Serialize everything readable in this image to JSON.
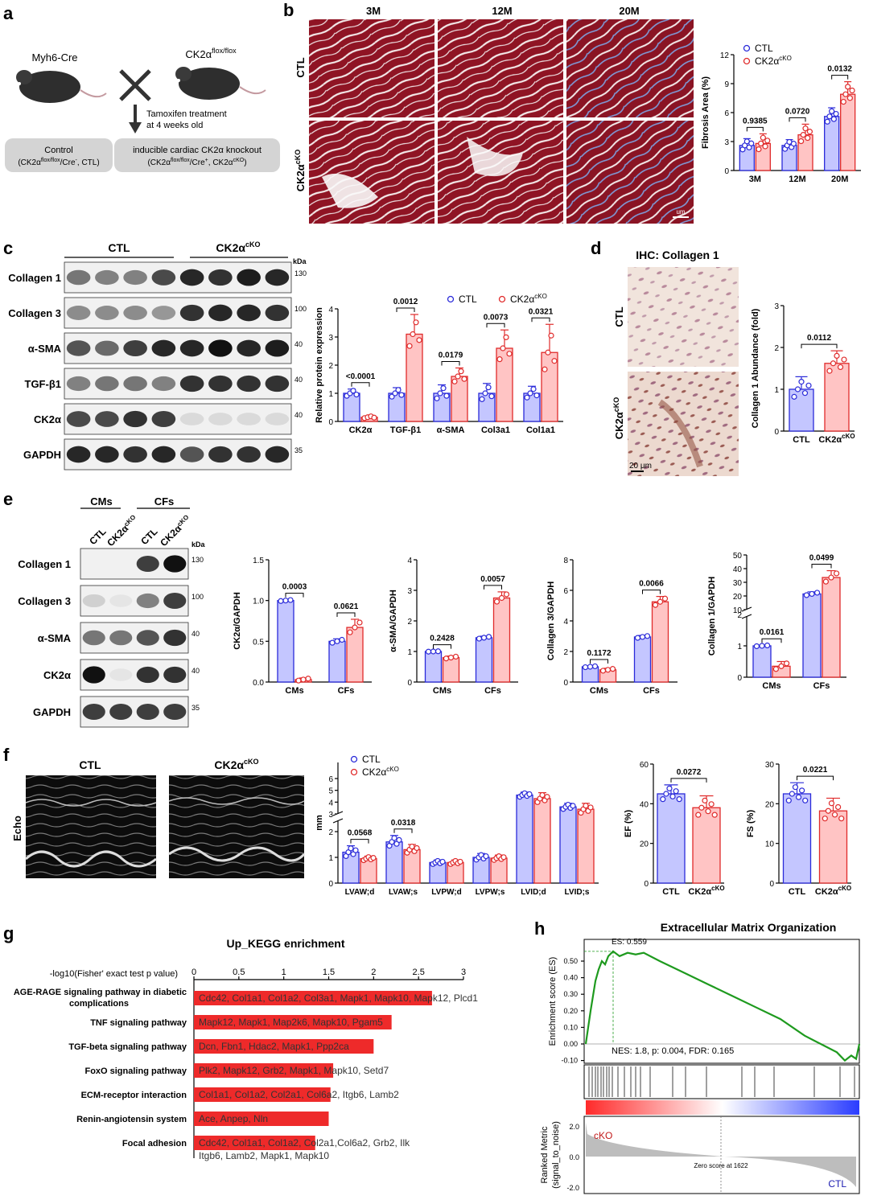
{
  "panels": {
    "a": {
      "letter": "a",
      "mouse_left": "Myh6-Cre",
      "mouse_right_base": "CK2α",
      "mouse_right_sup": "flox/flox",
      "treatment_line1": "Tamoxifen treatment",
      "treatment_line2": "at 4 weeks old",
      "box_left_line1": "Control",
      "box_left_line2": "(CK2α",
      "box_left_sup": "flox/flox",
      "box_left_line2b": "/Cre",
      "box_left_sup2": "-",
      "box_left_line2c": ", CTL)",
      "box_right_line1": "inducible cardiac CK2α knockout",
      "box_right_line2": "(CK2α",
      "box_right_sup": "flox/flox",
      "box_right_line2b": "/Cre",
      "box_right_sup2": "+",
      "box_right_line2c": ", CK2α",
      "box_right_sup3": "cKO",
      "box_right_line2d": ")"
    },
    "b": {
      "letter": "b",
      "col_labels": [
        "3M",
        "12M",
        "20M"
      ],
      "row_ctl": "CTL",
      "row_cko_base": "CK2α",
      "row_cko_sup": "cKO",
      "scale": "um"
    },
    "c": {
      "letter": "c",
      "group_ctl": "CTL",
      "group_cko_base": "CK2α",
      "group_cko_sup": "cKO",
      "kda": "kDa",
      "rows": [
        {
          "label": "Collagen 1",
          "kda": "130"
        },
        {
          "label": "Collagen 3",
          "kda": "100"
        },
        {
          "label": "α-SMA",
          "kda": "40"
        },
        {
          "label": "TGF-β1",
          "kda": "40"
        },
        {
          "label": "CK2α",
          "kda": "40"
        },
        {
          "label": "GAPDH",
          "kda": "35"
        }
      ]
    },
    "d": {
      "letter": "d",
      "title": "IHC: Collagen 1",
      "row_ctl": "CTL",
      "row_cko_base": "CK2α",
      "row_cko_sup": "cKO",
      "scalebar": "20 μm"
    },
    "e": {
      "letter": "e",
      "group_cms": "CMs",
      "group_cfs": "CFs",
      "lane_ctl": "CTL",
      "lane_cko_base": "CK2α",
      "lane_cko_sup": "cKO",
      "kda": "kDa",
      "rows": [
        {
          "label": "Collagen 1",
          "kda": "130"
        },
        {
          "label": "Collagen 3",
          "kda": "100"
        },
        {
          "label": "α-SMA",
          "kda": "40"
        },
        {
          "label": "CK2α",
          "kda": "40"
        },
        {
          "label": "GAPDH",
          "kda": "35"
        }
      ]
    },
    "f": {
      "letter": "f",
      "ctl": "CTL",
      "cko_base": "CK2α",
      "cko_sup": "cKO",
      "echo": "Echo"
    },
    "g": {
      "letter": "g",
      "title": "Up_KEGG enrichment",
      "axis_label": "-log10(Fisher' exact test p value)",
      "ticks": [
        "0",
        "0.5",
        "1",
        "1.5",
        "2",
        "2.5",
        "3"
      ],
      "bars": [
        {
          "name1": "AGE-RAGE signaling pathway in diabetic",
          "name2": "complications",
          "value": 2.65,
          "genes": "Cdc42, Col1a1, Col1a2, Col3a1, Mapk1, Mapk10, Mapk12, Plcd1",
          "genes2": ""
        },
        {
          "name1": "TNF signaling pathway",
          "name2": "",
          "value": 2.2,
          "genes": "Mapk12, Mapk1, Map2k6, Mapk10, Pgam5",
          "genes2": ""
        },
        {
          "name1": "TGF-beta signaling pathway",
          "name2": "",
          "value": 2.0,
          "genes": "Dcn, Fbn1, Hdac2, Mapk1, Ppp2ca",
          "genes2": ""
        },
        {
          "name1": "FoxO signaling pathway",
          "name2": "",
          "value": 1.55,
          "genes": "Plk2, Mapk12, Grb2, Mapk1, Mapk10, Setd7",
          "genes2": ""
        },
        {
          "name1": "ECM-receptor interaction",
          "name2": "",
          "value": 1.52,
          "genes": "Col1a1, Col1a2, Col2a1, Col6a2, Itgb6, Lamb2",
          "genes2": ""
        },
        {
          "name1": "Renin-angiotensin system",
          "name2": "",
          "value": 1.5,
          "genes": "Ace, Anpep, Nln",
          "genes2": ""
        },
        {
          "name1": "Focal adhesion",
          "name2": "",
          "value": 1.35,
          "genes": "Cdc42, Col1a1, Col1a2, Col2a1,Col6a2, Grb2, Ilk",
          "genes2": "Itgb6, Lamb2, Mapk1, Mapk10"
        }
      ]
    },
    "h": {
      "letter": "h",
      "title": "Extracellular Matrix Organization",
      "es_label": "ES: 0.559",
      "stats": "NES: 1.8, p: 0.004, FDR: 0.165",
      "ylabel_top": "Enrichment score (ES)",
      "yticks_top": [
        "0.50",
        "0.40",
        "0.30",
        "0.20",
        "0.10",
        "0.00",
        "-0.10"
      ],
      "ylabel_bottom1": "Ranked Metric",
      "ylabel_bottom2": "(signal_to_noise)",
      "yticks_bottom": [
        "2.0",
        "0.0",
        "-2.0"
      ],
      "cko": "cKO",
      "ctl": "CTL",
      "zero_score": "Zero score at 1622"
    }
  },
  "chart_data": [
    {
      "id": "b-fibrosis",
      "type": "bar",
      "ylabel": "Fibrosis Area (%)",
      "ylim": [
        0,
        12
      ],
      "yticks": [
        0,
        3,
        6,
        9,
        12
      ],
      "categories": [
        "3M",
        "12M",
        "20M"
      ],
      "legend": [
        "CTL",
        "CK2α"
      ],
      "legend_sup": "cKO",
      "series": [
        {
          "name": "CTL",
          "values": [
            2.6,
            2.6,
            5.6
          ],
          "err": [
            0.7,
            0.6,
            0.9
          ]
        },
        {
          "name": "CK2αcKO",
          "values": [
            2.8,
            3.7,
            7.9
          ],
          "err": [
            1.0,
            1.1,
            1.3
          ]
        }
      ],
      "pvalues": [
        "0.9385",
        "0.0720",
        "0.0132"
      ]
    },
    {
      "id": "c-protein",
      "type": "bar",
      "ylabel": "Relative protein expression",
      "ylim": [
        0,
        4
      ],
      "yticks": [
        0,
        1,
        2,
        3,
        4
      ],
      "categories": [
        "CK2α",
        "TGF-β1",
        "α-SMA",
        "Col3a1",
        "Col1a1"
      ],
      "legend": [
        "CTL",
        "CK2α"
      ],
      "legend_sup": "cKO",
      "series": [
        {
          "name": "CTL",
          "values": [
            1.0,
            1.0,
            1.0,
            1.0,
            1.0
          ],
          "err": [
            0.15,
            0.2,
            0.3,
            0.35,
            0.25
          ]
        },
        {
          "name": "CK2αcKO",
          "values": [
            0.15,
            3.1,
            1.6,
            2.6,
            2.45
          ],
          "err": [
            0.05,
            0.7,
            0.3,
            0.65,
            1.0
          ]
        }
      ],
      "pvalues": [
        "<0.0001",
        "0.0012",
        "0.0179",
        "0.0073",
        "0.0321"
      ]
    },
    {
      "id": "d-collagen",
      "type": "bar",
      "ylabel": "Collagen 1 Abundance (fold)",
      "ylim": [
        0,
        3
      ],
      "yticks": [
        0,
        1,
        2,
        3
      ],
      "categories": [
        "CTL",
        "CK2α"
      ],
      "category_sup": "cKO",
      "values": [
        1.0,
        1.62
      ],
      "err": [
        0.3,
        0.3
      ],
      "pvalues": [
        "0.0112"
      ]
    },
    {
      "id": "e-ck2a",
      "type": "bar",
      "ylabel": "CK2α/GAPDH",
      "ylim": [
        0,
        1.5
      ],
      "yticks": [
        0.0,
        0.5,
        1.0,
        1.5
      ],
      "ytick_labels": [
        "0.0",
        "0.5",
        "1.0",
        "1.5"
      ],
      "categories": [
        "CMs",
        "CFs"
      ],
      "series": [
        {
          "name": "CTL",
          "values": [
            1.0,
            0.5
          ],
          "err": [
            0.01,
            0.03
          ]
        },
        {
          "name": "CK2αcKO",
          "values": [
            0.03,
            0.67
          ],
          "err": [
            0.02,
            0.1
          ]
        }
      ],
      "pvalues": [
        "0.0003",
        "0.0621"
      ]
    },
    {
      "id": "e-asma",
      "type": "bar",
      "ylabel": "α-SMA/GAPDH",
      "ylim": [
        0,
        4
      ],
      "yticks": [
        0,
        1,
        2,
        3,
        4
      ],
      "categories": [
        "CMs",
        "CFs"
      ],
      "series": [
        {
          "name": "CTL",
          "values": [
            1.0,
            1.45
          ],
          "err": [
            0.01,
            0.05
          ]
        },
        {
          "name": "CK2αcKO",
          "values": [
            0.8,
            2.75
          ],
          "err": [
            0.05,
            0.2
          ]
        }
      ],
      "pvalues": [
        "0.2428",
        "0.0057"
      ]
    },
    {
      "id": "e-col3",
      "type": "bar",
      "ylabel": "Collagen 3/GAPDH",
      "ylim": [
        0,
        8
      ],
      "yticks": [
        0,
        2,
        4,
        6,
        8
      ],
      "categories": [
        "CMs",
        "CFs"
      ],
      "series": [
        {
          "name": "CTL",
          "values": [
            1.0,
            2.95
          ],
          "err": [
            0.05,
            0.1
          ]
        },
        {
          "name": "CK2αcKO",
          "values": [
            0.8,
            5.25
          ],
          "err": [
            0.1,
            0.35
          ]
        }
      ],
      "pvalues": [
        "0.1172",
        "0.0066"
      ]
    },
    {
      "id": "e-col1",
      "type": "bar",
      "ylabel": "Collagen 1/GAPDH",
      "yticks": [
        0,
        1,
        2,
        10,
        20,
        30,
        40,
        50
      ],
      "axis_break": [
        2,
        10
      ],
      "categories": [
        "CMs",
        "CFs"
      ],
      "series": [
        {
          "name": "CTL",
          "values": [
            1.0,
            21.5
          ],
          "err": [
            0.02,
            1.5
          ]
        },
        {
          "name": "CK2αcKO",
          "values": [
            0.35,
            33.5
          ],
          "err": [
            0.15,
            5.0
          ]
        }
      ],
      "pvalues": [
        "0.0161",
        "0.0499"
      ]
    },
    {
      "id": "f-mm",
      "type": "bar",
      "ylabel": "mm",
      "yticks": [
        0,
        1,
        2,
        3,
        4,
        5,
        6
      ],
      "axis_break": [
        2.5,
        3.0
      ],
      "categories": [
        "LVAW;d",
        "LVAW;s",
        "LVPW;d",
        "LVPW;s",
        "LVID;d",
        "LVID;s"
      ],
      "legend": [
        "CTL",
        "CK2α"
      ],
      "legend_sup": "cKO",
      "series": [
        {
          "name": "CTL",
          "values": [
            1.2,
            1.6,
            0.8,
            1.0,
            4.6,
            3.6
          ],
          "err": [
            0.25,
            0.25,
            0.1,
            0.15,
            0.25,
            0.3
          ]
        },
        {
          "name": "CK2αcKO",
          "values": [
            0.95,
            1.3,
            0.8,
            0.97,
            4.3,
            3.4
          ],
          "err": [
            0.1,
            0.2,
            0.1,
            0.12,
            0.5,
            0.5
          ]
        }
      ],
      "pvalues": [
        "0.0568",
        "0.0318"
      ]
    },
    {
      "id": "f-ef",
      "type": "bar",
      "ylabel": "EF (%)",
      "ylim": [
        0,
        60
      ],
      "yticks": [
        0,
        20,
        40,
        60
      ],
      "categories": [
        "CTL",
        "CK2α"
      ],
      "category_sup": "cKO",
      "values": [
        45,
        38
      ],
      "err": [
        4.5,
        6
      ],
      "pvalues": [
        "0.0272"
      ]
    },
    {
      "id": "f-fs",
      "type": "bar",
      "ylabel": "FS (%)",
      "ylim": [
        0,
        30
      ],
      "yticks": [
        0,
        10,
        20,
        30
      ],
      "categories": [
        "CTL",
        "CK2α"
      ],
      "category_sup": "cKO",
      "values": [
        22.5,
        18.2
      ],
      "err": [
        2.8,
        3.2
      ],
      "pvalues": [
        "0.0221"
      ]
    }
  ],
  "colors": {
    "ctl_fill": "#c4c6ff",
    "ctl_stroke": "#2b2bd9",
    "cko_fill": "#ffc4c4",
    "cko_stroke": "#e02b2b",
    "kegg_bar": "#ee2a2a",
    "gsea_line": "#1e9a1e"
  }
}
